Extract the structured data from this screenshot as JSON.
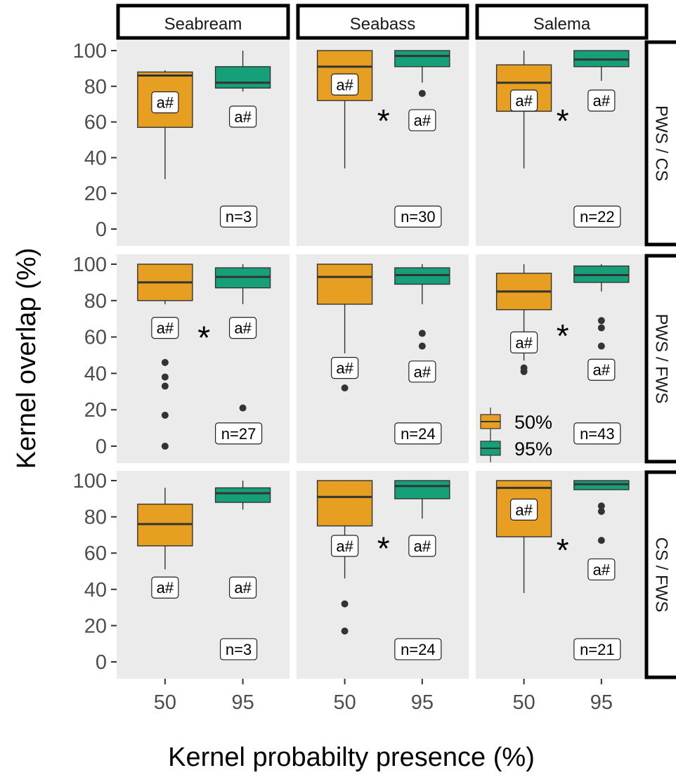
{
  "chart_data": {
    "type": "boxplot",
    "xlabel": "Kernel probabilty presence (%)",
    "ylabel": "Kernel overlap (%)",
    "ylim": [
      0,
      100
    ],
    "yticks": [
      "0",
      "20",
      "40",
      "60",
      "80",
      "100"
    ],
    "xticks": [
      "50",
      "95"
    ],
    "columns": [
      "Seabream",
      "Seabass",
      "Salema"
    ],
    "rows": [
      "PWS / CS",
      "PWS / FWS",
      "CS / FWS"
    ],
    "legend": {
      "placement": "inside-right-middle",
      "entries": [
        {
          "label": "50%",
          "color": "#E69F20"
        },
        {
          "label": "95%",
          "color": "#15A07A"
        }
      ]
    },
    "sig_marker": "*",
    "panel_bg": "#EBEBEB",
    "panels": [
      {
        "row": 0,
        "col": 0,
        "n": "n=3",
        "sig": false,
        "boxes": [
          {
            "q1": 57,
            "median": 86,
            "q3": 88,
            "lo": 28,
            "hi": 89,
            "outliers": [],
            "label": "a#",
            "label_y": 71
          },
          {
            "q1": 79,
            "median": 82,
            "q3": 91,
            "lo": 77,
            "hi": 100,
            "outliers": [],
            "label": "a#",
            "label_y": 63
          }
        ]
      },
      {
        "row": 0,
        "col": 1,
        "n": "n=30",
        "sig": true,
        "sig_y": 63,
        "boxes": [
          {
            "q1": 72,
            "median": 91,
            "q3": 100,
            "lo": 34,
            "hi": 100,
            "outliers": [],
            "label": "a#",
            "label_y": 81
          },
          {
            "q1": 91,
            "median": 97,
            "q3": 100,
            "lo": 82,
            "hi": 100,
            "outliers": [
              76
            ],
            "label": "a#",
            "label_y": 61
          }
        ]
      },
      {
        "row": 0,
        "col": 2,
        "n": "n=22",
        "sig": true,
        "sig_y": 63,
        "boxes": [
          {
            "q1": 66,
            "median": 82,
            "q3": 92,
            "lo": 34,
            "hi": 100,
            "outliers": [],
            "label": "a#",
            "label_y": 72
          },
          {
            "q1": 91,
            "median": 95,
            "q3": 100,
            "lo": 83,
            "hi": 100,
            "outliers": [],
            "label": "a#",
            "label_y": 72
          }
        ]
      },
      {
        "row": 1,
        "col": 0,
        "n": "n=27",
        "sig": true,
        "sig_y": 62,
        "boxes": [
          {
            "q1": 80,
            "median": 90,
            "q3": 100,
            "lo": 78,
            "hi": 100,
            "outliers": [
              46,
              38,
              33,
              17,
              0
            ],
            "label": "a#",
            "label_y": 65
          },
          {
            "q1": 87,
            "median": 93,
            "q3": 98,
            "lo": 78,
            "hi": 100,
            "outliers": [
              21
            ],
            "label": "a#",
            "label_y": 65
          }
        ]
      },
      {
        "row": 1,
        "col": 1,
        "n": "n=24",
        "sig": false,
        "boxes": [
          {
            "q1": 78,
            "median": 93,
            "q3": 100,
            "lo": 51,
            "hi": 100,
            "outliers": [
              32
            ],
            "label": "a#",
            "label_y": 43
          },
          {
            "q1": 89,
            "median": 94,
            "q3": 98,
            "lo": 78,
            "hi": 100,
            "outliers": [
              62,
              55
            ],
            "label": "a#",
            "label_y": 41
          }
        ]
      },
      {
        "row": 1,
        "col": 2,
        "n": "n=43",
        "sig": true,
        "sig_y": 63,
        "boxes": [
          {
            "q1": 75,
            "median": 85,
            "q3": 95,
            "lo": 47,
            "hi": 100,
            "outliers": [
              43,
              41
            ],
            "label": "a#",
            "label_y": 57
          },
          {
            "q1": 90,
            "median": 94,
            "q3": 99,
            "lo": 85,
            "hi": 100,
            "outliers": [
              69,
              65,
              55
            ],
            "label": "a#",
            "label_y": 42
          }
        ]
      },
      {
        "row": 2,
        "col": 0,
        "n": "n=3",
        "sig": false,
        "boxes": [
          {
            "q1": 64,
            "median": 76,
            "q3": 87,
            "lo": 51,
            "hi": 96,
            "outliers": [],
            "label": "a#",
            "label_y": 41
          },
          {
            "q1": 88,
            "median": 93,
            "q3": 96,
            "lo": 84,
            "hi": 100,
            "outliers": [],
            "label": "a#",
            "label_y": 41
          }
        ]
      },
      {
        "row": 2,
        "col": 1,
        "n": "n=24",
        "sig": true,
        "sig_y": 65,
        "boxes": [
          {
            "q1": 75,
            "median": 91,
            "q3": 100,
            "lo": 46,
            "hi": 100,
            "outliers": [
              32,
              17
            ],
            "label": "a#",
            "label_y": 64
          },
          {
            "q1": 90,
            "median": 97,
            "q3": 100,
            "lo": 79,
            "hi": 100,
            "outliers": [],
            "label": "a#",
            "label_y": 64
          }
        ]
      },
      {
        "row": 2,
        "col": 2,
        "n": "n=21",
        "sig": true,
        "sig_y": 64,
        "boxes": [
          {
            "q1": 69,
            "median": 96,
            "q3": 100,
            "lo": 38,
            "hi": 100,
            "outliers": [],
            "label": "a#",
            "label_y": 84
          },
          {
            "q1": 95,
            "median": 98,
            "q3": 100,
            "lo": 95,
            "hi": 100,
            "outliers": [
              86,
              83,
              67
            ],
            "label": "a#",
            "label_y": 51
          }
        ]
      }
    ]
  }
}
